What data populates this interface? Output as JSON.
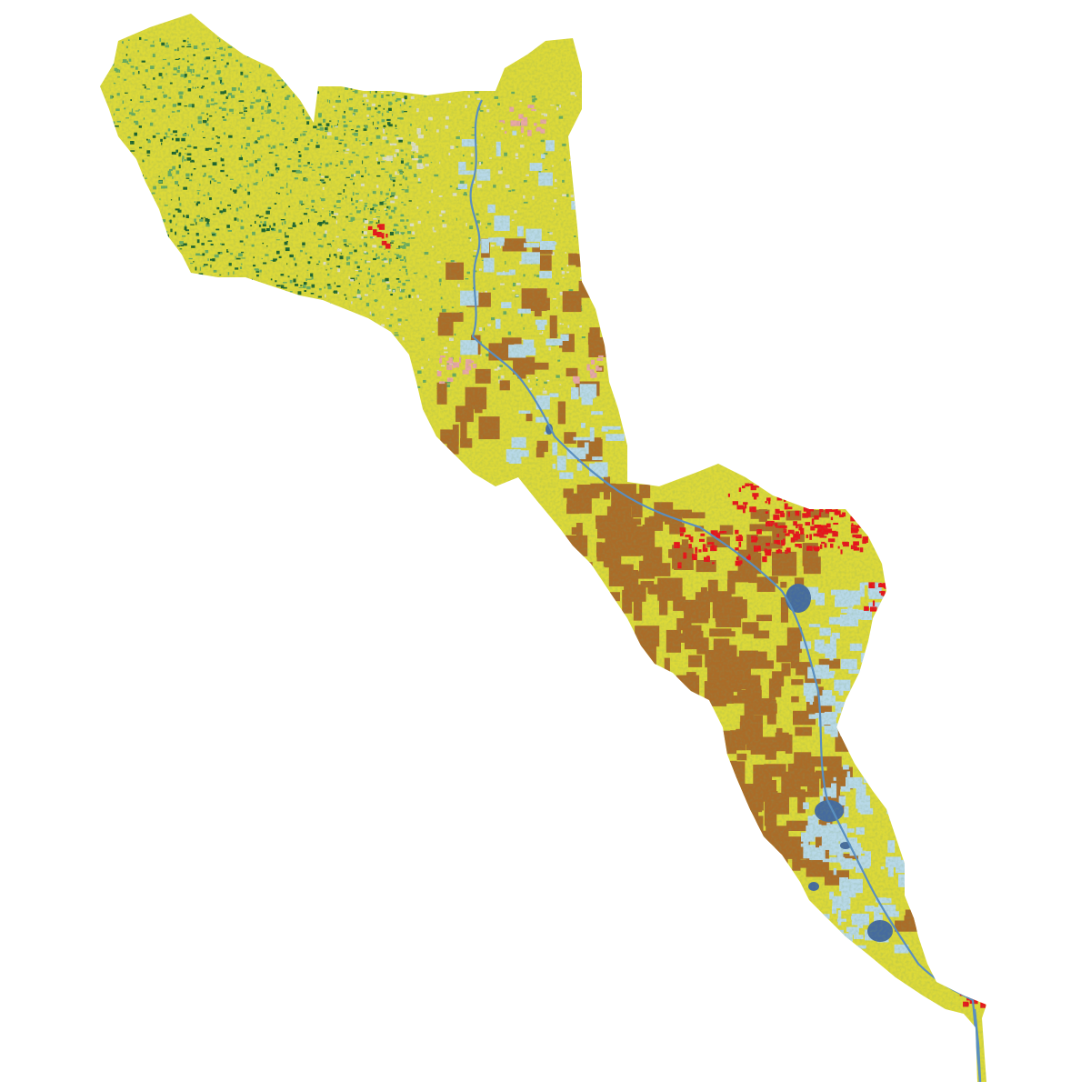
{
  "map": {
    "colors": {
      "background": "#ffffff",
      "cropland_yellow": "#dcd939",
      "pasture_brown": "#ab6c28",
      "developed_red": "#e8131a",
      "developed_pink": "#e8a6a6",
      "wetland_lightblue": "#b8d9e8",
      "water_blue": "#466b9f",
      "forest_darkgreen": "#1c6330",
      "forest_green": "#68ab5f",
      "grassland_beige": "#dfdfc2",
      "river_line": "#5a8fbf"
    }
  }
}
